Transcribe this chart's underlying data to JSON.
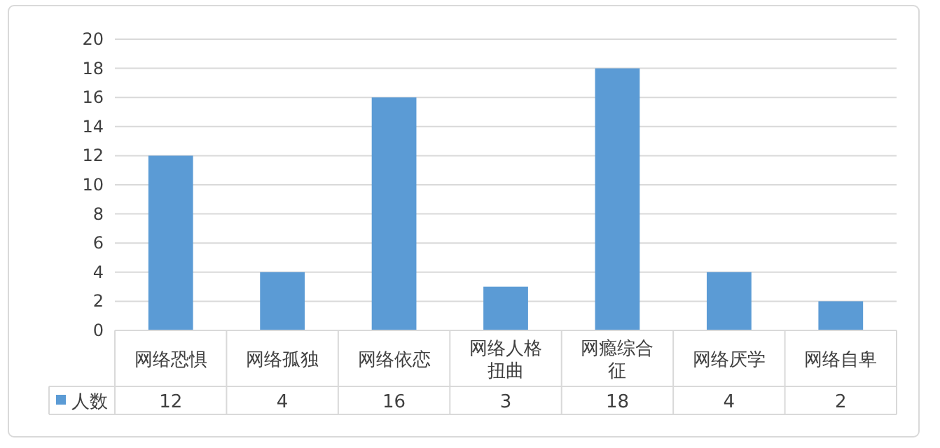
{
  "chart_data": {
    "type": "bar",
    "categories": [
      "网络恐惧",
      "网络孤独",
      "网络依恋",
      "网络人格扭曲",
      "网瘾综合征",
      "网络厌学",
      "网络自卑"
    ],
    "series": [
      {
        "name": "人数",
        "color": "#5b9bd5",
        "values": [
          12,
          4,
          16,
          3,
          18,
          4,
          2
        ]
      }
    ],
    "ylim": [
      0,
      20
    ],
    "yticks": [
      0,
      2,
      4,
      6,
      8,
      10,
      12,
      14,
      16,
      18,
      20
    ],
    "grid": "y",
    "data_labels": true,
    "legend": "bottom"
  }
}
